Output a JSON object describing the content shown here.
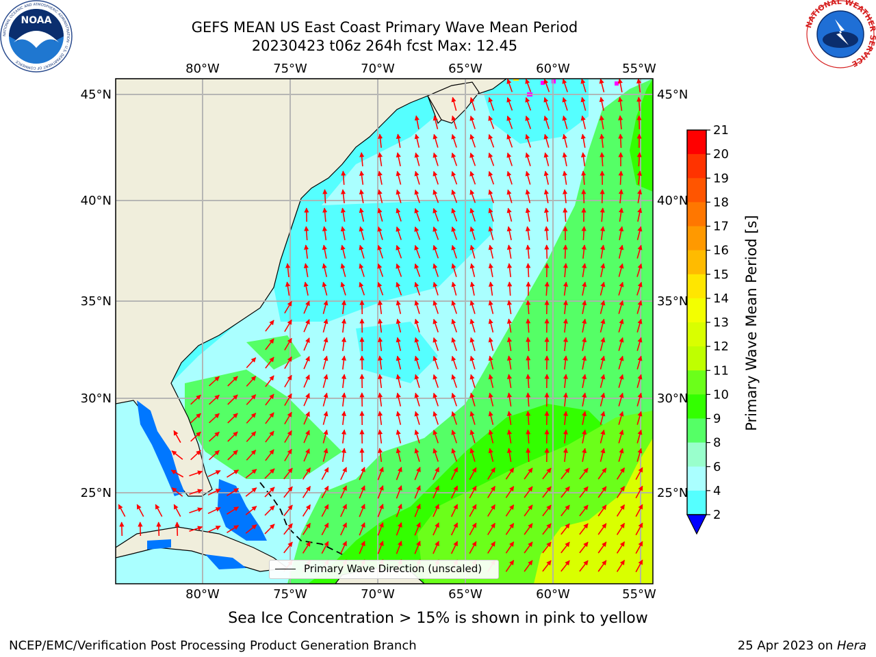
{
  "header": {
    "title_line1": "GEFS MEAN US East Coast Primary Wave Mean Period",
    "title_line2": "20230423 t06z 264h fcst   Max: 12.45"
  },
  "logos": {
    "noaa_text": "NOAA",
    "noaa_ring_text": "NATIONAL OCEANIC AND ATMOSPHERIC ADMINISTRATION · U.S. DEPARTMENT OF COMMERCE",
    "nws_ring_text": "NATIONAL WEATHER SERVICE"
  },
  "map": {
    "lon_labels": [
      "80°W",
      "75°W",
      "70°W",
      "65°W",
      "60°W",
      "55°W"
    ],
    "lat_labels": [
      "45°N",
      "40°N",
      "35°N",
      "30°N",
      "25°N"
    ],
    "legend_label": "Primary Wave Direction (unscaled)",
    "colors": {
      "land": "#f0eedc",
      "grid": "#b0b0b0",
      "arrows": "#ff0000",
      "coast": "#000000",
      "ice": "#ff00ff"
    }
  },
  "colorbar": {
    "label": "Primary Wave Mean Period [s]",
    "ticks": [
      "21",
      "20",
      "19",
      "18",
      "17",
      "16",
      "15",
      "14",
      "13",
      "12",
      "11",
      "10",
      "9",
      "8",
      "6",
      "4",
      "2"
    ],
    "colors": [
      "#ff0000",
      "#ff3300",
      "#ff5500",
      "#ff7700",
      "#ff9900",
      "#ffbb00",
      "#ffe600",
      "#f3ff00",
      "#d9ff00",
      "#bfff00",
      "#6bff1a",
      "#33ff00",
      "#55ff66",
      "#99ffcc",
      "#aaffff",
      "#55ffff",
      "#00ffff",
      "#0077ff",
      "#0000ff"
    ]
  },
  "captions": {
    "bottom": "Sea Ice Concentration > 15% is shown in pink to yellow",
    "footer_left": "NCEP/EMC/Verification Post Processing Product Generation Branch",
    "footer_right_date": "25 Apr 2023 on ",
    "footer_right_host": "Hera"
  }
}
